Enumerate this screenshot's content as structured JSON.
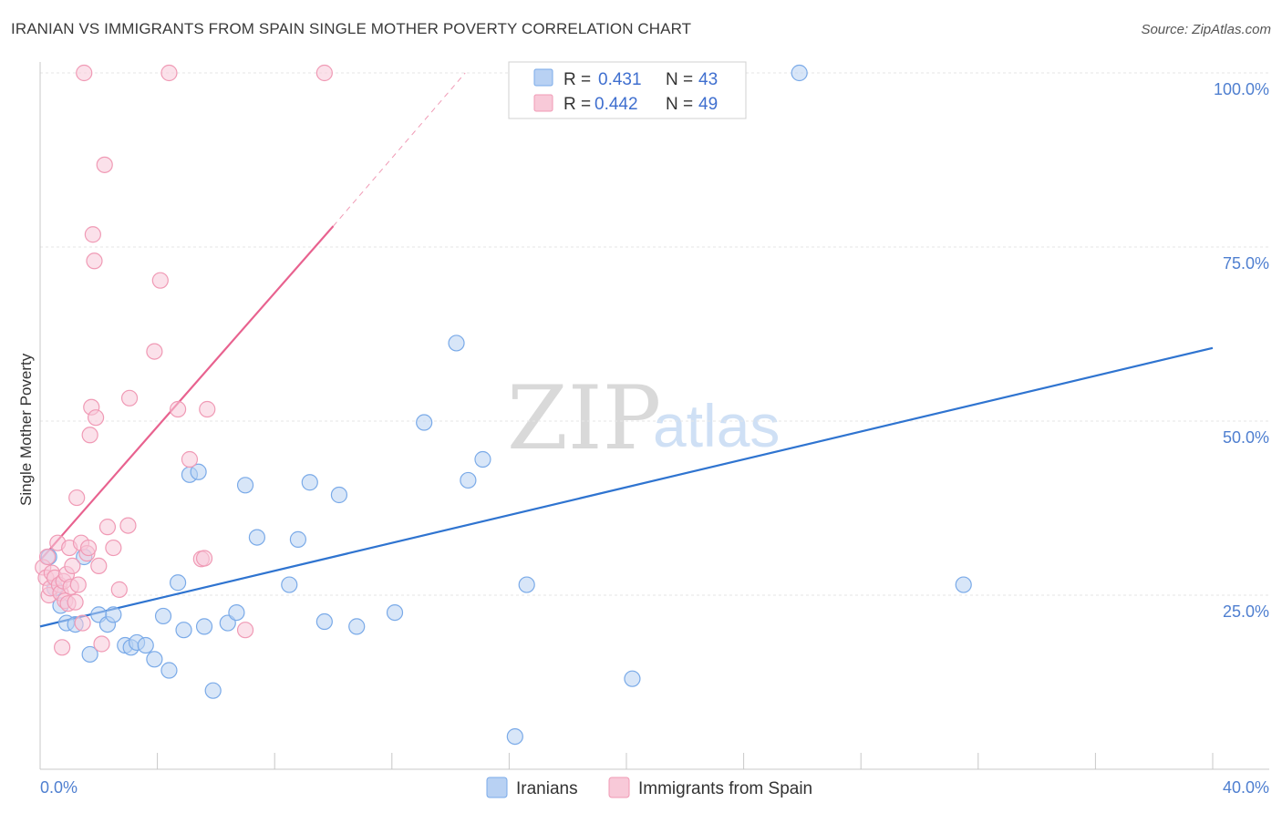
{
  "title": "IRANIAN VS IMMIGRANTS FROM SPAIN SINGLE MOTHER POVERTY CORRELATION CHART",
  "source": "Source: ZipAtlas.com",
  "watermark": {
    "zip": "ZIP",
    "atlas": "atlas"
  },
  "chart_data": {
    "type": "scatter",
    "xlabel": "",
    "ylabel": "Single Mother Poverty",
    "xlim": [
      0,
      40
    ],
    "ylim": [
      0,
      100
    ],
    "x_tick_labels": [
      {
        "value": 0,
        "label": "0.0%"
      },
      {
        "value": 40,
        "label": "40.0%"
      }
    ],
    "y_tick_labels": [
      {
        "value": 25,
        "label": "25.0%"
      },
      {
        "value": 50,
        "label": "50.0%"
      },
      {
        "value": 75,
        "label": "75.0%"
      },
      {
        "value": 100,
        "label": "100.0%"
      }
    ],
    "legend": [
      {
        "r_label": "R =",
        "r_value": "0.431",
        "n_label": "N =",
        "n_value": "43"
      },
      {
        "r_label": "R =",
        "r_value": "0.442",
        "n_label": "N =",
        "n_value": "49"
      }
    ],
    "series": [
      {
        "name": "Iranians",
        "color": "#7aaae8",
        "fill": "#b8d1f3",
        "line_color": "#2f74d0",
        "trend": {
          "x0": 0,
          "y0": 20.5,
          "x1": 40,
          "y1": 60.5,
          "dashed_to": null
        },
        "points": [
          [
            0.3,
            30.5
          ],
          [
            0.5,
            26
          ],
          [
            0.7,
            23.5
          ],
          [
            0.9,
            21
          ],
          [
            1.2,
            20.8
          ],
          [
            1.5,
            30.5
          ],
          [
            1.7,
            16.5
          ],
          [
            2.0,
            22.2
          ],
          [
            2.3,
            20.8
          ],
          [
            2.5,
            22.2
          ],
          [
            2.9,
            17.8
          ],
          [
            3.1,
            17.5
          ],
          [
            3.3,
            18.2
          ],
          [
            3.6,
            17.8
          ],
          [
            3.9,
            15.8
          ],
          [
            4.2,
            22.0
          ],
          [
            4.4,
            14.2
          ],
          [
            4.7,
            26.8
          ],
          [
            4.9,
            20.0
          ],
          [
            5.1,
            42.3
          ],
          [
            5.4,
            42.7
          ],
          [
            5.6,
            20.5
          ],
          [
            5.9,
            11.3
          ],
          [
            6.4,
            21.0
          ],
          [
            6.7,
            22.5
          ],
          [
            7.0,
            40.8
          ],
          [
            7.4,
            33.3
          ],
          [
            8.5,
            26.5
          ],
          [
            8.8,
            33.0
          ],
          [
            9.2,
            41.2
          ],
          [
            9.7,
            21.2
          ],
          [
            10.2,
            39.4
          ],
          [
            10.8,
            20.5
          ],
          [
            12.1,
            22.5
          ],
          [
            13.1,
            49.8
          ],
          [
            14.2,
            61.2
          ],
          [
            14.6,
            41.5
          ],
          [
            15.1,
            44.5
          ],
          [
            16.2,
            4.7
          ],
          [
            16.6,
            26.5
          ],
          [
            20.2,
            13.0
          ],
          [
            25.9,
            100
          ],
          [
            31.5,
            26.5
          ]
        ]
      },
      {
        "name": "Immigrants from Spain",
        "color": "#f09ab5",
        "fill": "#f8c9d8",
        "line_color": "#e8628f",
        "trend": {
          "x0": 0,
          "y0": 30.0,
          "x1": 10.0,
          "y1": 78.0,
          "dashed_to": [
            14.5,
            100
          ]
        },
        "points": [
          [
            0.1,
            29.0
          ],
          [
            0.2,
            27.5
          ],
          [
            0.25,
            30.5
          ],
          [
            0.3,
            25.0
          ],
          [
            0.35,
            26.0
          ],
          [
            0.4,
            28.2
          ],
          [
            0.5,
            27.5
          ],
          [
            0.6,
            32.5
          ],
          [
            0.65,
            26.5
          ],
          [
            0.7,
            25.3
          ],
          [
            0.75,
            17.5
          ],
          [
            0.8,
            27.0
          ],
          [
            0.85,
            24.2
          ],
          [
            0.9,
            28.0
          ],
          [
            0.95,
            23.8
          ],
          [
            1.0,
            31.8
          ],
          [
            1.05,
            26.2
          ],
          [
            1.1,
            29.2
          ],
          [
            1.2,
            24.0
          ],
          [
            1.25,
            39.0
          ],
          [
            1.3,
            26.5
          ],
          [
            1.4,
            32.5
          ],
          [
            1.45,
            21.0
          ],
          [
            1.5,
            100
          ],
          [
            1.6,
            31.0
          ],
          [
            1.65,
            31.8
          ],
          [
            1.7,
            48.0
          ],
          [
            1.75,
            52.0
          ],
          [
            1.8,
            76.8
          ],
          [
            1.85,
            73.0
          ],
          [
            1.9,
            50.5
          ],
          [
            2.0,
            29.2
          ],
          [
            2.1,
            18.0
          ],
          [
            2.2,
            86.8
          ],
          [
            2.3,
            34.8
          ],
          [
            2.5,
            31.8
          ],
          [
            2.7,
            25.8
          ],
          [
            3.0,
            35.0
          ],
          [
            3.05,
            53.3
          ],
          [
            3.9,
            60.0
          ],
          [
            4.1,
            70.2
          ],
          [
            4.4,
            100
          ],
          [
            4.7,
            51.7
          ],
          [
            5.1,
            44.5
          ],
          [
            5.5,
            30.2
          ],
          [
            5.6,
            30.3
          ],
          [
            5.7,
            51.7
          ],
          [
            7.0,
            20.0
          ],
          [
            9.7,
            100
          ]
        ]
      }
    ],
    "grid": true,
    "legend_position": "top-center"
  }
}
